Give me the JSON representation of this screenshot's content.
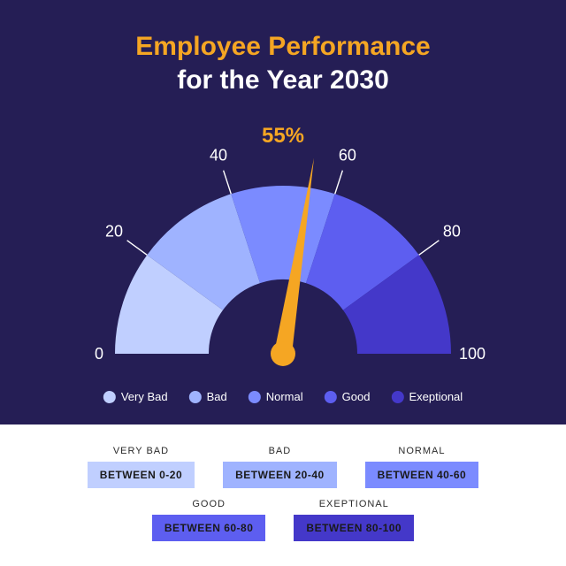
{
  "header": {
    "line1": "Employee Performance",
    "line2": "for the Year 2030",
    "line1_color": "#f5a623",
    "line2_color": "#ffffff",
    "font_size": 30
  },
  "gauge": {
    "type": "gauge",
    "value": 55,
    "value_label": "55%",
    "value_color": "#f5a623",
    "needle_color": "#f5a623",
    "needle_hub_color": "#f5a623",
    "background_color": "#251e55",
    "outer_radius": 190,
    "inner_radius": 84,
    "min": 0,
    "max": 100,
    "ticks": [
      0,
      20,
      40,
      60,
      80,
      100
    ],
    "tick_line_color": "#ffffff",
    "tick_label_color": "#ffffff",
    "tick_label_fontsize": 18,
    "segments": [
      {
        "from": 0,
        "to": 20,
        "color": "#c0cfff",
        "label": "Very Bad"
      },
      {
        "from": 20,
        "to": 40,
        "color": "#9fb3ff",
        "label": "Bad"
      },
      {
        "from": 40,
        "to": 60,
        "color": "#7b8bff",
        "label": "Normal"
      },
      {
        "from": 60,
        "to": 80,
        "color": "#5d5ef0",
        "label": "Good"
      },
      {
        "from": 80,
        "to": 100,
        "color": "#4438c9",
        "label": "Exeptional"
      }
    ]
  },
  "legend": {
    "items": [
      {
        "label": "Very Bad",
        "color": "#c0cfff"
      },
      {
        "label": "Bad",
        "color": "#9fb3ff"
      },
      {
        "label": "Normal",
        "color": "#7b8bff"
      },
      {
        "label": "Good",
        "color": "#5d5ef0"
      },
      {
        "label": "Exeptional",
        "color": "#4438c9"
      }
    ],
    "text_color": "#ffffff",
    "font_size": 13
  },
  "ranges": {
    "name_font_size": 11,
    "box_font_size": 12,
    "row1": [
      {
        "name": "VERY BAD",
        "range": "BETWEEN 0-20",
        "color": "#c0cfff"
      },
      {
        "name": "BAD",
        "range": "BETWEEN 20-40",
        "color": "#9fb3ff"
      },
      {
        "name": "NORMAL",
        "range": "BETWEEN 40-60",
        "color": "#7b8bff"
      }
    ],
    "row2": [
      {
        "name": "GOOD",
        "range": "BETWEEN 60-80",
        "color": "#5d5ef0"
      },
      {
        "name": "EXEPTIONAL",
        "range": "BETWEEN 80-100",
        "color": "#4438c9"
      }
    ]
  }
}
